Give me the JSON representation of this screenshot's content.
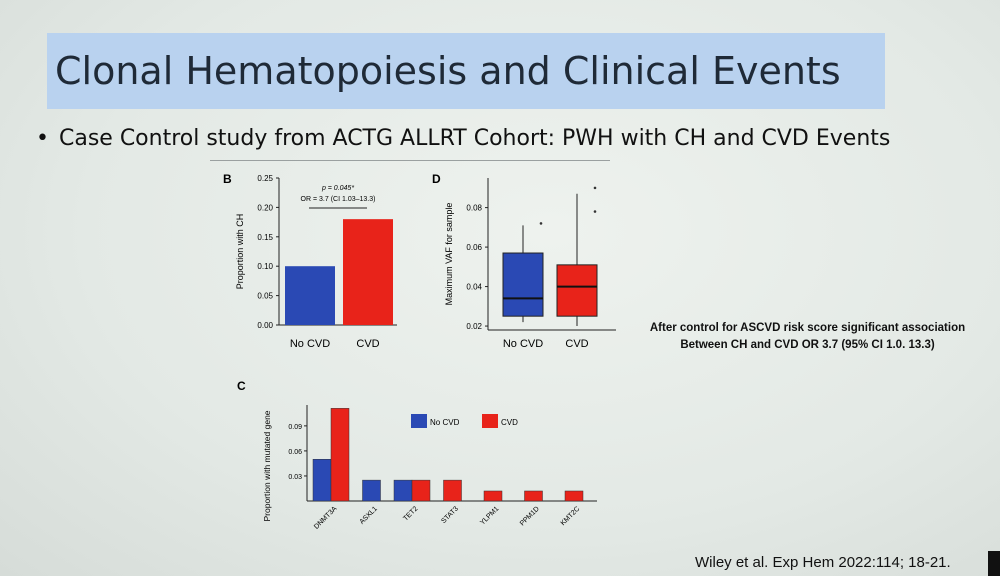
{
  "slide": {
    "title": "Clonal Hematopoiesis and Clinical Events",
    "bullet": "Case Control study from ACTG ALLRT Cohort: PWH with CH and CVD Events",
    "note_line1": "After control for ASCVD risk score significant association",
    "note_line2": "Between CH and CVD OR 3.7 (95% CI 1.0. 13.3)",
    "citation": "Wiley et al. Exp Hem 2022:114; 18-21."
  },
  "colors": {
    "no_cvd": "#2a49b4",
    "cvd": "#e8231a"
  },
  "chart_data": [
    {
      "panel": "B",
      "type": "bar",
      "ylabel": "Proportion with CH",
      "categories": [
        "No CVD",
        "CVD"
      ],
      "values": [
        0.1,
        0.18
      ],
      "ylim": [
        0,
        0.25
      ],
      "yticks": [
        "0.00",
        "0.05",
        "0.10",
        "0.15",
        "0.20",
        "0.25"
      ],
      "annotation_p": "p = 0.045*",
      "annotation_or": "OR = 3.7 (CI 1.03–13.3)"
    },
    {
      "panel": "D",
      "type": "box",
      "ylabel": "Maximum VAF for sample",
      "categories": [
        "No CVD",
        "CVD"
      ],
      "ylim": [
        0.018,
        0.095
      ],
      "yticks": [
        "0.02",
        "0.04",
        "0.06",
        "0.08"
      ],
      "boxes": [
        {
          "min": 0.022,
          "q1": 0.025,
          "median": 0.034,
          "q3": 0.057,
          "max": 0.071,
          "outliers": [
            0.072
          ]
        },
        {
          "min": 0.02,
          "q1": 0.025,
          "median": 0.04,
          "q3": 0.051,
          "max": 0.087,
          "outliers": [
            0.09,
            0.078
          ]
        }
      ]
    },
    {
      "panel": "C",
      "type": "bar",
      "ylabel": "Proportion with mutated gene",
      "categories": [
        "DNMT3A",
        "ASXL1",
        "TET2",
        "STAT3",
        "YLPM1",
        "PPM1D",
        "KMT2C"
      ],
      "yticks": [
        "0.03",
        "0.06",
        "0.09"
      ],
      "ylim": [
        0,
        0.115
      ],
      "series": [
        {
          "name": "No CVD",
          "values": [
            0.05,
            0.025,
            0.025,
            0,
            0,
            0,
            0
          ]
        },
        {
          "name": "CVD",
          "values": [
            0.111,
            0,
            0.025,
            0.025,
            0.012,
            0.012,
            0.012
          ]
        }
      ]
    }
  ]
}
